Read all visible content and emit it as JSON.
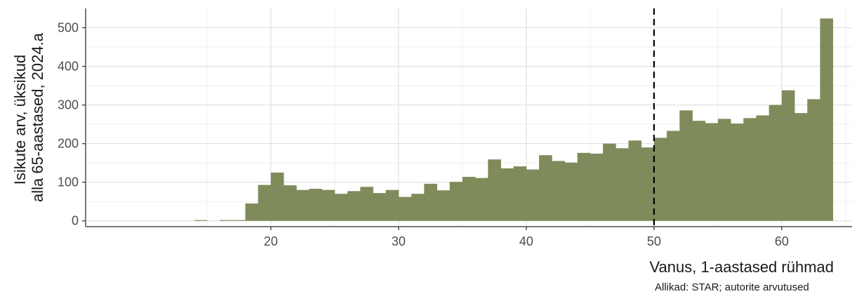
{
  "chart_data": {
    "type": "bar",
    "x": [
      14,
      15,
      16,
      17,
      18,
      19,
      20,
      21,
      22,
      23,
      24,
      25,
      26,
      27,
      28,
      29,
      30,
      31,
      32,
      33,
      34,
      35,
      36,
      37,
      38,
      39,
      40,
      41,
      42,
      43,
      44,
      45,
      46,
      47,
      48,
      49,
      50,
      51,
      52,
      53,
      54,
      55,
      56,
      57,
      58,
      59,
      60,
      61,
      62,
      63
    ],
    "values": [
      2,
      0,
      2,
      2,
      45,
      93,
      125,
      92,
      80,
      83,
      80,
      70,
      77,
      88,
      72,
      80,
      62,
      70,
      96,
      79,
      101,
      114,
      111,
      159,
      136,
      141,
      133,
      170,
      155,
      151,
      176,
      174,
      200,
      188,
      208,
      190,
      215,
      233,
      286,
      259,
      253,
      264,
      252,
      266,
      273,
      300,
      338,
      279,
      315,
      524
    ],
    "bar_color": "#7f8b5a",
    "xlim": [
      5.5,
      65.5
    ],
    "ylim": [
      -15,
      550
    ],
    "x_ticks": [
      20,
      30,
      40,
      50,
      60
    ],
    "x_tick_labels": [
      "20",
      "30",
      "40",
      "50",
      "60"
    ],
    "y_ticks": [
      0,
      100,
      200,
      300,
      400,
      500
    ],
    "y_tick_labels": [
      "0",
      "100",
      "200",
      "300",
      "400",
      "500"
    ],
    "vline": {
      "x": 50,
      "style": "dashed",
      "color": "#000000"
    },
    "grid": true,
    "xlabel": "Vanus, 1-aastased rühmad",
    "ylabel_lines": [
      "Isikute arv, üksikud",
      "alla 65-aastased, 2024.a"
    ],
    "caption": "Allikad: STAR; autorite arvutused"
  }
}
